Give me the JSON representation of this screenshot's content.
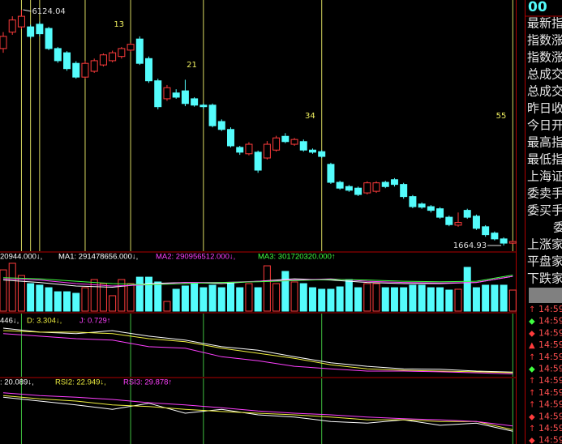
{
  "chart_data": [
    {
      "type": "candlestick",
      "ylim": [
        1558,
        6308
      ],
      "up_color": "#ff3c3c",
      "down_color": "#54fcfc",
      "open": [
        5390,
        5700,
        5800,
        5800,
        5850,
        5770,
        5390,
        5310,
        5110,
        4850,
        4960,
        5080,
        5160,
        5240,
        5360,
        5570,
        5200,
        4780,
        4440,
        4550,
        4590,
        4440,
        4320,
        4320,
        4010,
        3860,
        3520,
        3400,
        3430,
        3320,
        3470,
        3730,
        3580,
        3630,
        3470,
        3440,
        3200,
        2860,
        2780,
        2750,
        2660,
        2690,
        2860,
        2910,
        2820,
        2590,
        2450,
        2400,
        2360,
        2200,
        2050,
        2330,
        2220,
        2020,
        1900,
        1790,
        1710
      ],
      "high": [
        5700,
        6000,
        6124.04,
        5840,
        5900,
        5800,
        5420,
        5340,
        5150,
        5160,
        5200,
        5300,
        5350,
        5420,
        5500,
        5620,
        5240,
        4820,
        4700,
        4620,
        4800,
        4470,
        4350,
        4350,
        4050,
        3900,
        3550,
        3620,
        3460,
        3640,
        3740,
        3790,
        3700,
        3670,
        3500,
        3470,
        3230,
        2890,
        2810,
        2780,
        2880,
        2880,
        2890,
        2940,
        2850,
        2620,
        2480,
        2430,
        2390,
        2230,
        2290,
        2360,
        2250,
        2050,
        1930,
        1820,
        1760
      ],
      "low": [
        5310,
        5650,
        5760,
        5580,
        5620,
        5360,
        5120,
        4970,
        4820,
        4820,
        4930,
        5050,
        5130,
        5200,
        5330,
        5080,
        4740,
        4240,
        4400,
        4440,
        4300,
        4290,
        4250,
        3900,
        3830,
        3520,
        3380,
        3370,
        3040,
        3290,
        3440,
        3600,
        3550,
        3440,
        3400,
        3320,
        2830,
        2720,
        2680,
        2600,
        2630,
        2660,
        2750,
        2780,
        2550,
        2370,
        2360,
        2290,
        2170,
        2030,
        2020,
        2170,
        1960,
        1830,
        1760,
        1664.93,
        1690
      ],
      "close": [
        5620,
        5930,
        6000,
        5620,
        5670,
        5390,
        5160,
        5010,
        4850,
        5110,
        5160,
        5270,
        5310,
        5390,
        5470,
        5110,
        4780,
        4290,
        4650,
        4470,
        4350,
        4320,
        4290,
        3930,
        3860,
        3550,
        3430,
        3580,
        3090,
        3580,
        3700,
        3630,
        3670,
        3470,
        3430,
        3350,
        2860,
        2750,
        2710,
        2630,
        2850,
        2850,
        2780,
        2820,
        2590,
        2400,
        2390,
        2330,
        2200,
        2060,
        2100,
        2200,
        1990,
        1870,
        1790,
        1710,
        1740
      ],
      "high_label": "6124.04",
      "low_label": "1664.93",
      "time_lines": [
        2,
        3,
        4,
        9,
        14,
        22,
        35,
        56
      ],
      "time_line_color": "#d8d860",
      "time_line_labels": [
        {
          "index": 14,
          "text": "13"
        },
        {
          "index": 22,
          "text": "21"
        },
        {
          "index": 35,
          "text": "34"
        },
        {
          "index": 56,
          "text": "55"
        }
      ],
      "label_color": "#f0f060"
    },
    {
      "type": "bar",
      "ylim": [
        0,
        420000000
      ],
      "values": [
        345000000,
        400000000,
        298000000,
        230000000,
        217000000,
        196000000,
        162000000,
        162000000,
        149000000,
        196000000,
        264000000,
        230000000,
        129000000,
        264000000,
        230000000,
        284000000,
        284000000,
        244000000,
        81000000,
        183000000,
        210000000,
        230000000,
        196000000,
        217000000,
        196000000,
        230000000,
        196000000,
        230000000,
        196000000,
        379000000,
        230000000,
        332000000,
        244000000,
        230000000,
        196000000,
        183000000,
        183000000,
        203000000,
        264000000,
        196000000,
        230000000,
        230000000,
        196000000,
        196000000,
        196000000,
        217000000,
        217000000,
        196000000,
        196000000,
        176000000,
        183000000,
        366000000,
        196000000,
        217000000,
        217000000,
        217000000,
        176000000
      ],
      "series": [
        {
          "name": "MA1",
          "color": "#ffffff",
          "x": [
            0,
            4,
            8,
            12,
            16,
            20,
            24,
            28,
            32,
            36,
            40,
            44,
            48,
            52,
            56
          ],
          "values": [
            260000000,
            240000000,
            210000000,
            200000000,
            230000000,
            240000000,
            230000000,
            250000000,
            270000000,
            260000000,
            240000000,
            230000000,
            230000000,
            240000000,
            291478656
          ]
        },
        {
          "name": "MA2",
          "color": "#ff40ff",
          "x": [
            0,
            4,
            8,
            12,
            16,
            20,
            24,
            28,
            32,
            36,
            40,
            44,
            48,
            52,
            56
          ],
          "values": [
            270000000,
            260000000,
            230000000,
            210000000,
            220000000,
            240000000,
            240000000,
            250000000,
            260000000,
            270000000,
            250000000,
            240000000,
            235000000,
            240000000,
            290956512
          ]
        },
        {
          "name": "MA3",
          "color": "#40ff40",
          "x": [
            0,
            4,
            8,
            12,
            16,
            20,
            24,
            28,
            32,
            36,
            40,
            44,
            48,
            52,
            56
          ],
          "values": [
            280000000,
            270000000,
            250000000,
            230000000,
            220000000,
            230000000,
            240000000,
            245000000,
            255000000,
            265000000,
            260000000,
            250000000,
            245000000,
            250000000,
            301720320
          ]
        }
      ],
      "header": [
        {
          "text": "20944.000↓,",
          "color": "#ffffff"
        },
        {
          "text": "MA1: 291478656.000↓,",
          "color": "#ffffff"
        },
        {
          "text": "MA2: 290956512.000↓,",
          "color": "#ff40ff"
        },
        {
          "text": "MA3: 301720320.000↑",
          "color": "#40ff40"
        }
      ]
    },
    {
      "type": "line",
      "ylim": [
        0,
        100
      ],
      "time_lines": [
        2,
        14,
        22,
        35,
        56
      ],
      "time_line_color": "#40c040",
      "series": [
        {
          "name": "K",
          "color": "#ffffff",
          "x": [
            0,
            4,
            8,
            12,
            16,
            20,
            24,
            28,
            32,
            36,
            40,
            44,
            48,
            52,
            56
          ],
          "values": [
            92,
            84,
            81,
            87,
            76,
            68,
            55,
            48,
            35,
            23,
            16,
            11,
            10,
            6.5,
            4.446
          ]
        },
        {
          "name": "D",
          "color": "#f0f040",
          "x": [
            0,
            4,
            8,
            12,
            16,
            20,
            24,
            28,
            32,
            36,
            40,
            44,
            48,
            52,
            56
          ],
          "values": [
            87,
            84,
            84,
            81,
            71,
            65,
            52,
            42,
            32,
            19,
            11,
            8,
            6.5,
            5,
            3.304
          ]
        },
        {
          "name": "J",
          "color": "#ff40ff",
          "x": [
            0,
            4,
            8,
            12,
            16,
            20,
            24,
            28,
            32,
            36,
            40,
            44,
            48,
            52,
            56
          ],
          "values": [
            81,
            76,
            71,
            68,
            55,
            52,
            35,
            27,
            16,
            11,
            6.5,
            6.5,
            5,
            3,
            0.729
          ]
        }
      ],
      "header": [
        {
          "text": "446↓,",
          "color": "#ffffff"
        },
        {
          "text": "D: 3.304↓,",
          "color": "#f0f040"
        },
        {
          "text": "J: 0.729↑",
          "color": "#ff40ff"
        }
      ]
    },
    {
      "type": "line",
      "ylim": [
        0,
        100
      ],
      "time_lines": [
        2,
        14,
        22,
        35,
        56
      ],
      "time_line_color": "#40c040",
      "series": [
        {
          "name": "RSI1",
          "color": "#ffffff",
          "x": [
            0,
            4,
            8,
            12,
            16,
            20,
            24,
            28,
            32,
            36,
            40,
            44,
            48,
            52,
            56
          ],
          "values": [
            82,
            75,
            68,
            60,
            71,
            53,
            60,
            50,
            46,
            38,
            35,
            41,
            31,
            35,
            20.089
          ]
        },
        {
          "name": "RSI2",
          "color": "#f0f040",
          "x": [
            0,
            4,
            8,
            12,
            16,
            20,
            24,
            28,
            32,
            36,
            40,
            44,
            48,
            52,
            56
          ],
          "values": [
            85,
            79,
            75,
            68,
            65,
            60,
            56,
            53,
            50,
            46,
            41,
            41,
            38,
            38,
            22.949
          ]
        },
        {
          "name": "RSI3",
          "color": "#ff40ff",
          "x": [
            0,
            4,
            8,
            12,
            16,
            20,
            24,
            28,
            32,
            36,
            40,
            44,
            48,
            52,
            56
          ],
          "values": [
            90,
            85,
            82,
            78,
            72,
            68,
            63,
            57,
            53,
            50,
            46,
            43,
            41,
            38,
            29.878
          ]
        }
      ],
      "header": [
        {
          "text": ": 20.089↓,",
          "color": "#ffffff"
        },
        {
          "text": "RSI2: 22.949↓,",
          "color": "#f0f040"
        },
        {
          "text": "RSI3: 29.878↑",
          "color": "#ff40ff"
        }
      ]
    }
  ],
  "side_panel": {
    "title": "00",
    "labels": [
      "最新指",
      "指数涨",
      "指数涨",
      "总成交",
      "总成交",
      "昨日收",
      "今日开",
      "最高指",
      "最低指",
      "上海证",
      "委卖手",
      "委买手",
      "委",
      "上涨家",
      "平盘家",
      "下跌家"
    ],
    "trades": [
      {
        "icon": "↑",
        "color": "#ff3c3c",
        "time": "14:59"
      },
      {
        "icon": "◆",
        "color": "#40ff40",
        "time": "14:59"
      },
      {
        "icon": "◆",
        "color": "#ff3c3c",
        "time": "14:59"
      },
      {
        "icon": "▲",
        "color": "#ff3c3c",
        "time": "14:59"
      },
      {
        "icon": "↑",
        "color": "#ff3c3c",
        "time": "14:59"
      },
      {
        "icon": "◆",
        "color": "#40ff40",
        "time": "14:59"
      },
      {
        "icon": "↑",
        "color": "#ff3c3c",
        "time": "14:59"
      },
      {
        "icon": "↑",
        "color": "#ff3c3c",
        "time": "14:59"
      },
      {
        "icon": "↑",
        "color": "#ff3c3c",
        "time": "14:59"
      },
      {
        "icon": "◆",
        "color": "#ff3c3c",
        "time": "14:59"
      },
      {
        "icon": "↑",
        "color": "#ff3c3c",
        "time": "14:59"
      },
      {
        "icon": "◆",
        "color": "#ff3c3c",
        "time": "14:59"
      }
    ]
  }
}
